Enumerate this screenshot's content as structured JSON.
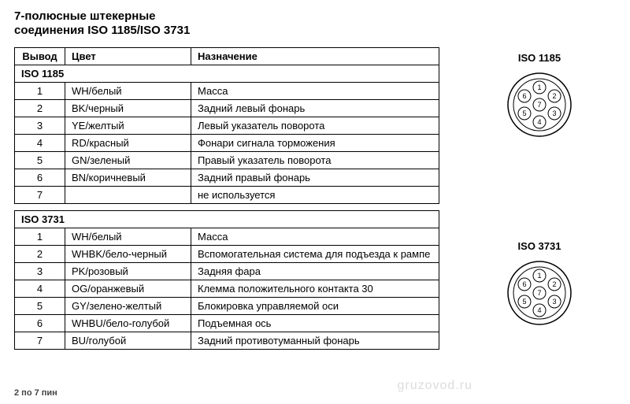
{
  "title_line1": "7-полюсные штекерные",
  "title_line2": "соединения ISO 1185/ISO 3731",
  "headers": {
    "pin": "Вывод",
    "color": "Цвет",
    "function": "Назначение"
  },
  "sections": {
    "iso1185": {
      "label": "ISO 1185",
      "rows": [
        {
          "pin": "1",
          "color": "WH/белый",
          "function": "Масса"
        },
        {
          "pin": "2",
          "color": "BK/черный",
          "function": "Задний левый фонарь"
        },
        {
          "pin": "3",
          "color": "YE/желтый",
          "function": "Левый указатель поворота"
        },
        {
          "pin": "4",
          "color": "RD/красный",
          "function": "Фонари сигнала торможения"
        },
        {
          "pin": "5",
          "color": "GN/зеленый",
          "function": "Правый указатель поворота"
        },
        {
          "pin": "6",
          "color": "BN/коричневый",
          "function": "Задний правый фонарь"
        },
        {
          "pin": "7",
          "color": "",
          "function": "не используется"
        }
      ]
    },
    "iso3731": {
      "label": "ISO 3731",
      "rows": [
        {
          "pin": "1",
          "color": "WH/белый",
          "function": "Масса"
        },
        {
          "pin": "2",
          "color": "WHBK/бело-черный",
          "function": "Вспомогательная система для подъезда к рампе"
        },
        {
          "pin": "3",
          "color": "PK/розовый",
          "function": "Задняя фара"
        },
        {
          "pin": "4",
          "color": "OG/оранжевый",
          "function": "Клемма положительного контакта 30"
        },
        {
          "pin": "5",
          "color": "GY/зелено-желтый",
          "function": "Блокировка управляемой оси"
        },
        {
          "pin": "6",
          "color": "WHBU/бело-голубой",
          "function": "Подъемная ось"
        },
        {
          "pin": "7",
          "color": "BU/голубой",
          "function": "Задний противотуманный фонарь"
        }
      ]
    }
  },
  "diagrams": {
    "iso1185_label": "ISO 1185",
    "iso3731_label": "ISO 3731",
    "connector": {
      "outer_radius": 40,
      "inner_radius": 33,
      "pin_radius": 8,
      "pin_orbit": 22,
      "colors": {
        "stroke": "#000000",
        "fill": "#ffffff",
        "text": "#000000"
      },
      "font_size": 9,
      "pins": [
        {
          "n": "1",
          "angle": -90
        },
        {
          "n": "2",
          "angle": -30
        },
        {
          "n": "3",
          "angle": 30
        },
        {
          "n": "4",
          "angle": 90
        },
        {
          "n": "5",
          "angle": 150
        },
        {
          "n": "6",
          "angle": -150
        },
        {
          "n": "7",
          "angle": 0,
          "center": true
        }
      ]
    }
  },
  "footer": "2 по 7 пин",
  "watermark": "gruzovod.ru"
}
